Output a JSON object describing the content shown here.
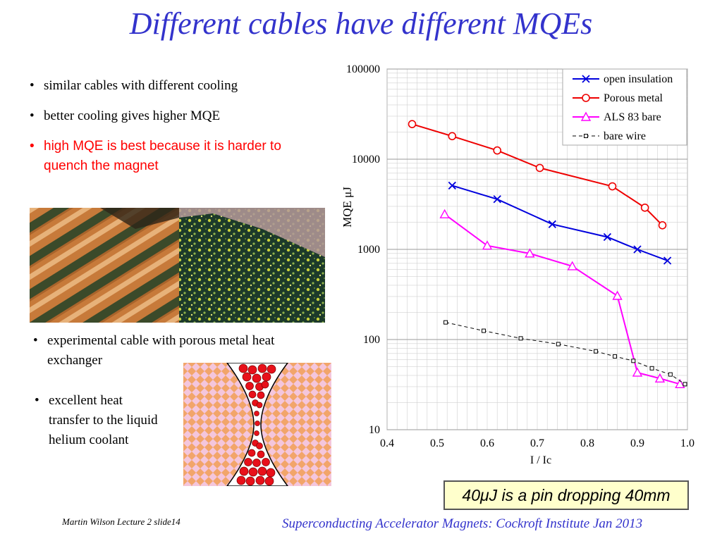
{
  "slide": {
    "title": "Different cables have different MQEs",
    "bullets_top": [
      {
        "text": "similar cables with different cooling",
        "color": "#000000"
      },
      {
        "text": "better cooling gives higher MQE",
        "color": "#000000"
      },
      {
        "text": "high MQE is best because it is harder to quench the magnet",
        "color": "#ff0000"
      }
    ],
    "bullet_porous": "experimental cable with porous metal heat exchanger",
    "bullet_transfer": "excellent heat transfer to the liquid helium coolant",
    "note": "40μJ is a pin dropping 40mm",
    "footer_left": "Martin Wilson Lecture 2 slide14",
    "footer_right": "Superconducting Accelerator Magnets:  Cockroft Institute Jan 2013"
  },
  "chart_data": {
    "type": "line",
    "xlabel": "I / Ic",
    "ylabel": "MQE μJ",
    "xlim": [
      0.4,
      1.0
    ],
    "ylim": [
      10,
      100000
    ],
    "yscale": "log",
    "grid": true,
    "legend_position": "top-right",
    "x_ticks": [
      "0.4",
      "0.5",
      "0.6",
      "0.7",
      "0.8",
      "0.9",
      "1.0"
    ],
    "y_ticks": [
      "10",
      "100",
      "1000",
      "10000",
      "100000"
    ],
    "series": [
      {
        "name": "open insulation",
        "color": "#0000dd",
        "marker": "x",
        "dashed": false,
        "x": [
          0.53,
          0.62,
          0.73,
          0.84,
          0.9,
          0.96
        ],
        "y": [
          5100,
          3600,
          1900,
          1370,
          1000,
          750
        ]
      },
      {
        "name": "Porous metal",
        "color": "#ee0000",
        "marker": "circle",
        "dashed": false,
        "x": [
          0.45,
          0.53,
          0.62,
          0.705,
          0.85,
          0.915,
          0.95
        ],
        "y": [
          24500,
          18000,
          12500,
          8000,
          5000,
          2900,
          1850
        ]
      },
      {
        "name": "ALS 83 bare",
        "color": "#ff00ff",
        "marker": "triangle",
        "dashed": false,
        "x": [
          0.515,
          0.6,
          0.685,
          0.77,
          0.86,
          0.9,
          0.945,
          0.985
        ],
        "y": [
          2450,
          1100,
          900,
          650,
          305,
          43,
          37,
          32
        ]
      },
      {
        "name": "bare wire",
        "color": "#000000",
        "marker": "square",
        "dashed": true,
        "x": [
          0.517,
          0.593,
          0.667,
          0.742,
          0.817,
          0.855,
          0.892,
          0.929,
          0.966,
          0.995
        ],
        "y": [
          155,
          125,
          103,
          89,
          74,
          65,
          58,
          48,
          41,
          32
        ]
      }
    ]
  }
}
